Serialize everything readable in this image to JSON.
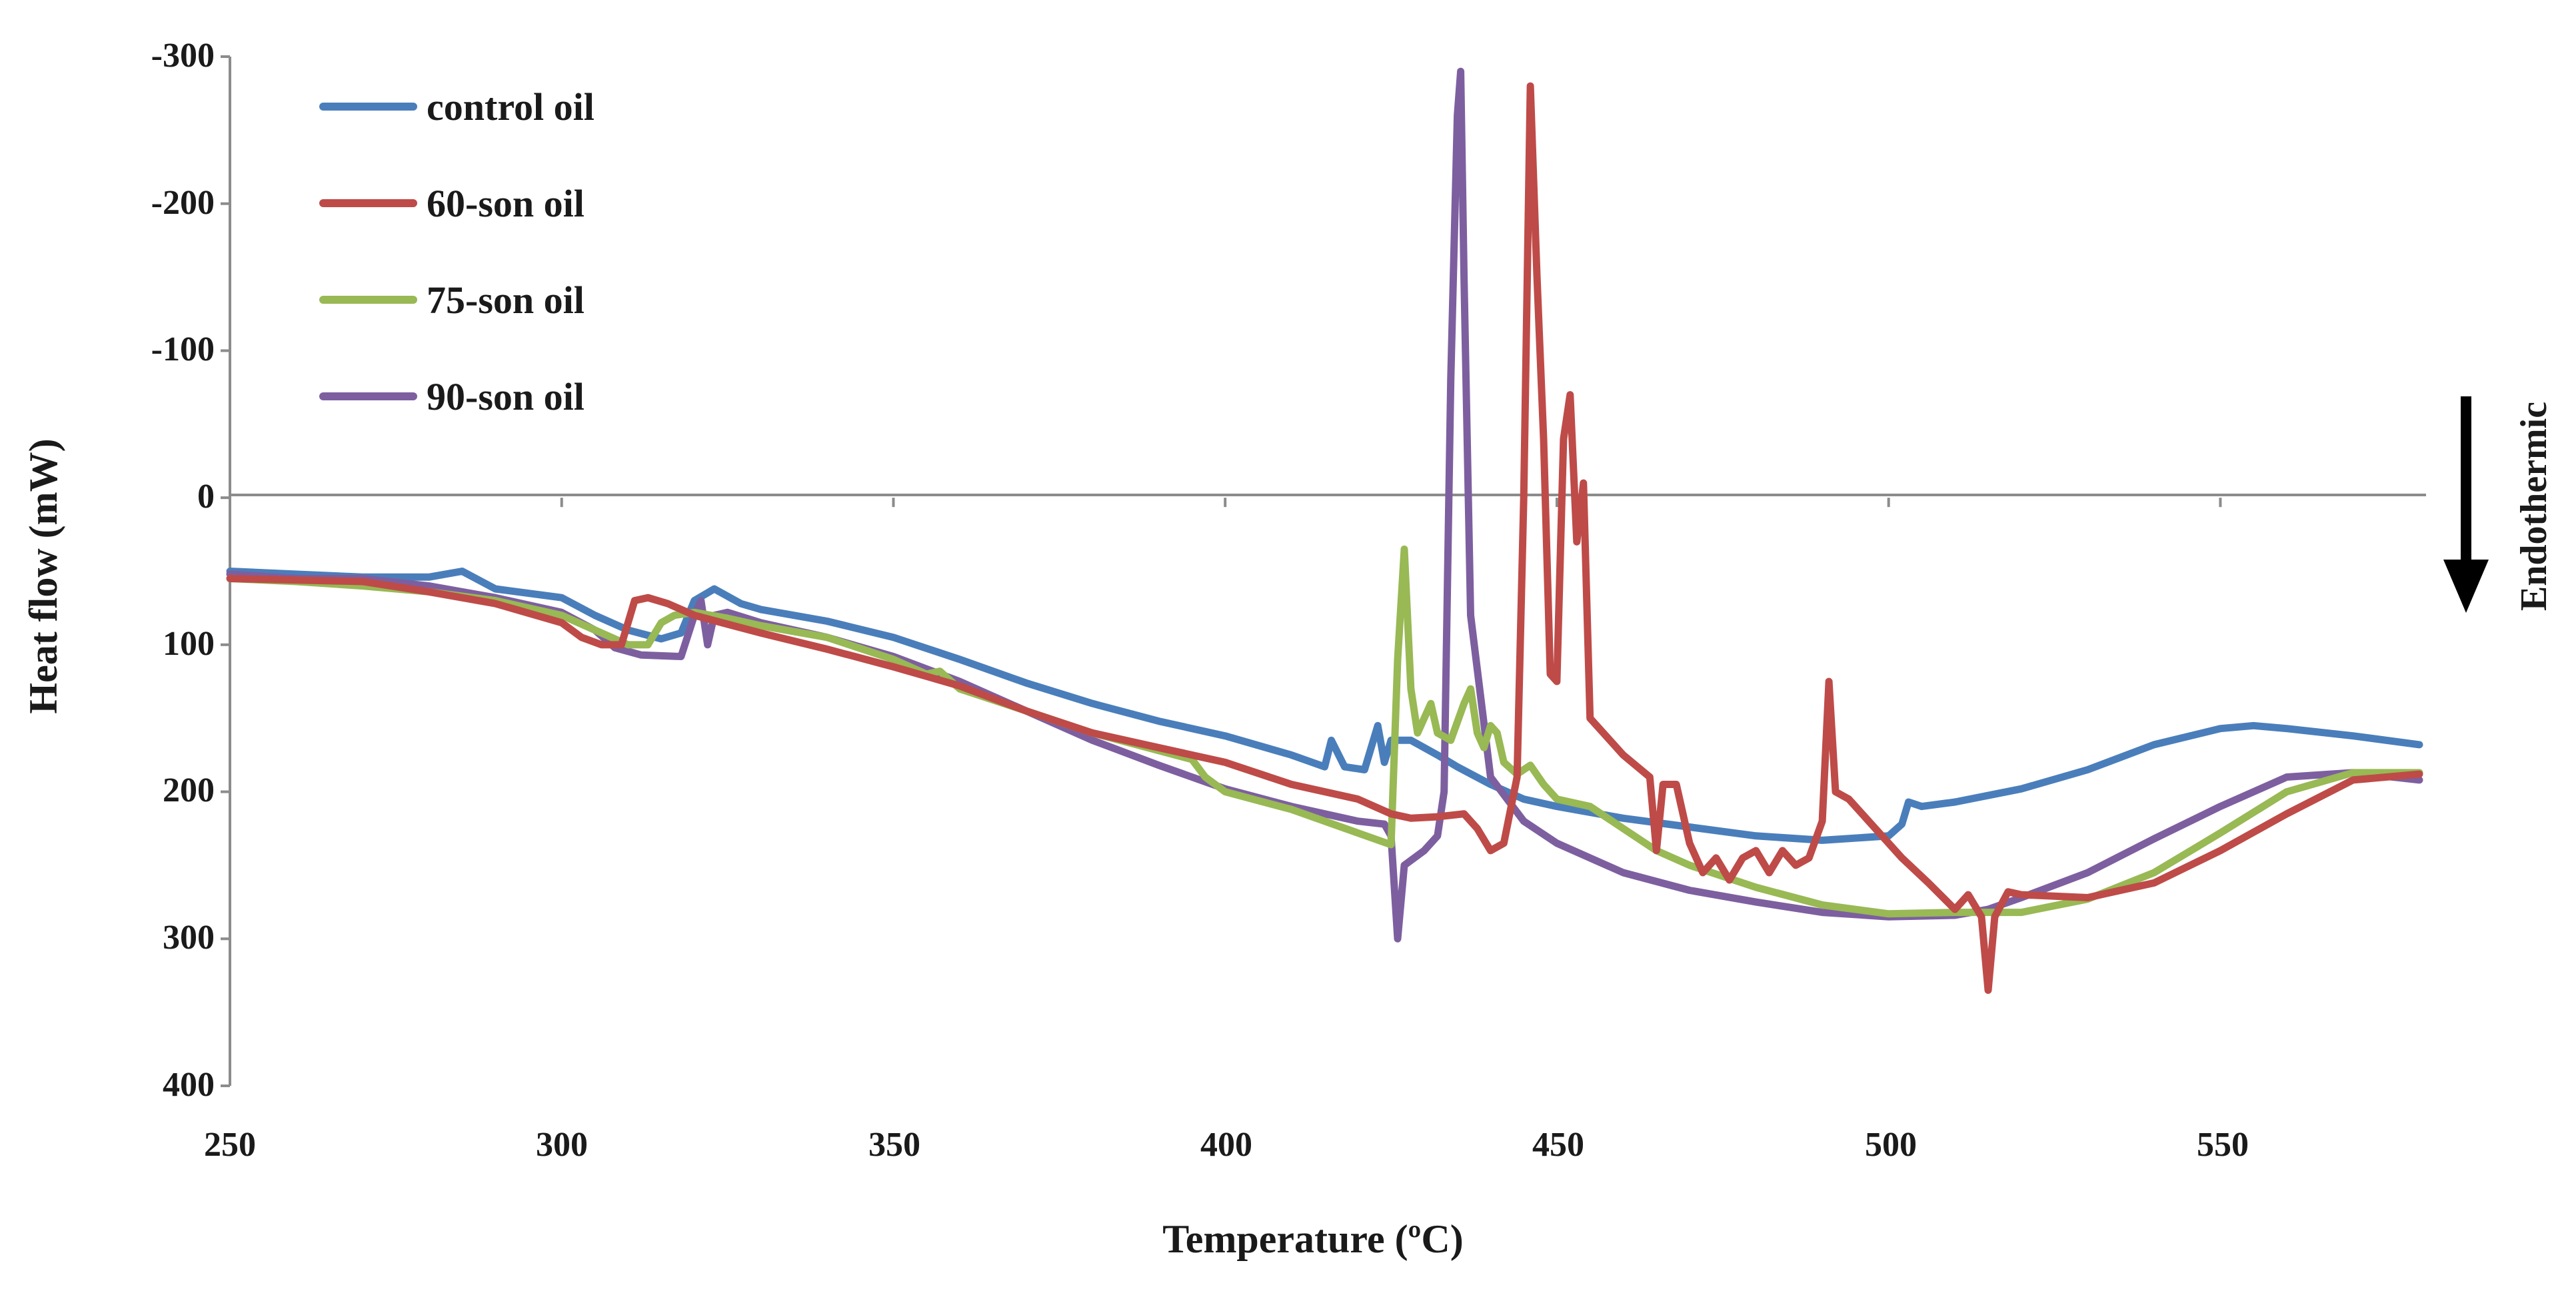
{
  "chart_data": {
    "type": "line",
    "title": "",
    "xlabel": "Temperature (ºC)",
    "ylabel": "Heat flow (mW)",
    "xlim": [
      250,
      580
    ],
    "ylim": [
      -300,
      400
    ],
    "y_inverted": true,
    "x_ticks": [
      250,
      300,
      350,
      400,
      450,
      500,
      550
    ],
    "y_ticks": [
      -300,
      -200,
      -100,
      0,
      100,
      200,
      300,
      400
    ],
    "y_tick_labels": [
      "-300",
      "-200",
      "-100",
      "0",
      "100",
      "200",
      "300",
      "400"
    ],
    "legend_position": "top-left",
    "annotation": "Endothermic",
    "series": [
      {
        "name": "control oil",
        "color": "#4a7ebb",
        "points": [
          [
            250,
            50
          ],
          [
            270,
            54
          ],
          [
            280,
            54
          ],
          [
            285,
            50
          ],
          [
            290,
            62
          ],
          [
            300,
            68
          ],
          [
            305,
            80
          ],
          [
            310,
            90
          ],
          [
            315,
            96
          ],
          [
            318,
            92
          ],
          [
            320,
            70
          ],
          [
            323,
            62
          ],
          [
            327,
            72
          ],
          [
            330,
            76
          ],
          [
            340,
            84
          ],
          [
            350,
            95
          ],
          [
            360,
            110
          ],
          [
            370,
            126
          ],
          [
            380,
            140
          ],
          [
            390,
            152
          ],
          [
            400,
            162
          ],
          [
            410,
            175
          ],
          [
            415,
            183
          ],
          [
            416,
            165
          ],
          [
            418,
            183
          ],
          [
            421,
            185
          ],
          [
            423,
            155
          ],
          [
            424,
            180
          ],
          [
            425,
            165
          ],
          [
            428,
            165
          ],
          [
            432,
            175
          ],
          [
            435,
            183
          ],
          [
            440,
            195
          ],
          [
            445,
            205
          ],
          [
            450,
            210
          ],
          [
            460,
            218
          ],
          [
            470,
            224
          ],
          [
            480,
            230
          ],
          [
            490,
            233
          ],
          [
            500,
            230
          ],
          [
            502,
            222
          ],
          [
            503,
            207
          ],
          [
            505,
            210
          ],
          [
            510,
            207
          ],
          [
            520,
            198
          ],
          [
            530,
            185
          ],
          [
            540,
            168
          ],
          [
            550,
            157
          ],
          [
            555,
            155
          ],
          [
            560,
            157
          ],
          [
            570,
            162
          ],
          [
            580,
            168
          ]
        ]
      },
      {
        "name": "60-son oil",
        "color": "#be4b48",
        "points": [
          [
            250,
            55
          ],
          [
            260,
            56
          ],
          [
            270,
            57
          ],
          [
            280,
            64
          ],
          [
            290,
            72
          ],
          [
            300,
            85
          ],
          [
            303,
            95
          ],
          [
            306,
            100
          ],
          [
            309,
            100
          ],
          [
            310,
            85
          ],
          [
            311,
            70
          ],
          [
            313,
            68
          ],
          [
            316,
            72
          ],
          [
            320,
            80
          ],
          [
            325,
            86
          ],
          [
            330,
            92
          ],
          [
            340,
            103
          ],
          [
            350,
            115
          ],
          [
            360,
            128
          ],
          [
            370,
            145
          ],
          [
            380,
            160
          ],
          [
            390,
            170
          ],
          [
            400,
            180
          ],
          [
            410,
            195
          ],
          [
            420,
            205
          ],
          [
            425,
            215
          ],
          [
            428,
            218
          ],
          [
            432,
            217
          ],
          [
            436,
            215
          ],
          [
            438,
            225
          ],
          [
            440,
            240
          ],
          [
            442,
            235
          ],
          [
            444,
            190
          ],
          [
            445,
            0
          ],
          [
            446,
            -280
          ],
          [
            447,
            -150
          ],
          [
            448,
            -40
          ],
          [
            449,
            120
          ],
          [
            450,
            125
          ],
          [
            451,
            -40
          ],
          [
            452,
            -70
          ],
          [
            453,
            30
          ],
          [
            454,
            -10
          ],
          [
            455,
            150
          ],
          [
            460,
            175
          ],
          [
            464,
            190
          ],
          [
            465,
            240
          ],
          [
            466,
            195
          ],
          [
            468,
            195
          ],
          [
            470,
            235
          ],
          [
            472,
            255
          ],
          [
            474,
            245
          ],
          [
            476,
            260
          ],
          [
            478,
            245
          ],
          [
            480,
            240
          ],
          [
            482,
            255
          ],
          [
            484,
            240
          ],
          [
            486,
            250
          ],
          [
            488,
            245
          ],
          [
            490,
            220
          ],
          [
            491,
            125
          ],
          [
            492,
            200
          ],
          [
            494,
            205
          ],
          [
            498,
            225
          ],
          [
            502,
            245
          ],
          [
            506,
            262
          ],
          [
            510,
            280
          ],
          [
            512,
            270
          ],
          [
            514,
            285
          ],
          [
            515,
            335
          ],
          [
            516,
            285
          ],
          [
            518,
            268
          ],
          [
            520,
            270
          ],
          [
            530,
            272
          ],
          [
            540,
            262
          ],
          [
            550,
            240
          ],
          [
            560,
            215
          ],
          [
            570,
            192
          ],
          [
            580,
            188
          ]
        ]
      },
      {
        "name": "75-son oil",
        "color": "#98b954",
        "points": [
          [
            250,
            55
          ],
          [
            260,
            57
          ],
          [
            270,
            60
          ],
          [
            280,
            64
          ],
          [
            290,
            70
          ],
          [
            300,
            80
          ],
          [
            305,
            90
          ],
          [
            310,
            100
          ],
          [
            313,
            100
          ],
          [
            315,
            85
          ],
          [
            317,
            80
          ],
          [
            320,
            78
          ],
          [
            325,
            82
          ],
          [
            330,
            87
          ],
          [
            340,
            95
          ],
          [
            350,
            110
          ],
          [
            355,
            120
          ],
          [
            357,
            118
          ],
          [
            360,
            130
          ],
          [
            370,
            145
          ],
          [
            380,
            160
          ],
          [
            390,
            172
          ],
          [
            395,
            178
          ],
          [
            397,
            190
          ],
          [
            400,
            200
          ],
          [
            410,
            212
          ],
          [
            420,
            228
          ],
          [
            425,
            236
          ],
          [
            426,
            110
          ],
          [
            427,
            35
          ],
          [
            428,
            130
          ],
          [
            429,
            160
          ],
          [
            431,
            140
          ],
          [
            432,
            160
          ],
          [
            434,
            165
          ],
          [
            436,
            140
          ],
          [
            437,
            130
          ],
          [
            438,
            160
          ],
          [
            439,
            170
          ],
          [
            440,
            155
          ],
          [
            441,
            160
          ],
          [
            442,
            180
          ],
          [
            444,
            188
          ],
          [
            446,
            182
          ],
          [
            448,
            195
          ],
          [
            450,
            205
          ],
          [
            455,
            210
          ],
          [
            460,
            225
          ],
          [
            465,
            240
          ],
          [
            470,
            250
          ],
          [
            480,
            265
          ],
          [
            490,
            277
          ],
          [
            500,
            283
          ],
          [
            510,
            282
          ],
          [
            520,
            282
          ],
          [
            530,
            273
          ],
          [
            540,
            255
          ],
          [
            550,
            228
          ],
          [
            560,
            200
          ],
          [
            570,
            187
          ],
          [
            580,
            187
          ]
        ]
      },
      {
        "name": "90-son oil",
        "color": "#7d5fa0",
        "points": [
          [
            250,
            52
          ],
          [
            260,
            55
          ],
          [
            270,
            55
          ],
          [
            280,
            60
          ],
          [
            290,
            68
          ],
          [
            300,
            78
          ],
          [
            305,
            90
          ],
          [
            308,
            102
          ],
          [
            312,
            107
          ],
          [
            318,
            108
          ],
          [
            320,
            80
          ],
          [
            321,
            70
          ],
          [
            322,
            100
          ],
          [
            323,
            80
          ],
          [
            325,
            78
          ],
          [
            330,
            85
          ],
          [
            340,
            95
          ],
          [
            350,
            108
          ],
          [
            360,
            125
          ],
          [
            370,
            145
          ],
          [
            380,
            165
          ],
          [
            390,
            182
          ],
          [
            400,
            198
          ],
          [
            410,
            210
          ],
          [
            420,
            220
          ],
          [
            424,
            222
          ],
          [
            425,
            230
          ],
          [
            426,
            300
          ],
          [
            427,
            250
          ],
          [
            430,
            240
          ],
          [
            432,
            230
          ],
          [
            433,
            200
          ],
          [
            434,
            -80
          ],
          [
            435,
            -260
          ],
          [
            435.5,
            -290
          ],
          [
            436,
            -150
          ],
          [
            437,
            80
          ],
          [
            440,
            190
          ],
          [
            445,
            220
          ],
          [
            450,
            235
          ],
          [
            460,
            255
          ],
          [
            470,
            267
          ],
          [
            480,
            275
          ],
          [
            490,
            282
          ],
          [
            500,
            285
          ],
          [
            510,
            284
          ],
          [
            515,
            280
          ],
          [
            520,
            272
          ],
          [
            530,
            255
          ],
          [
            540,
            232
          ],
          [
            550,
            210
          ],
          [
            560,
            190
          ],
          [
            570,
            187
          ],
          [
            580,
            192
          ]
        ]
      }
    ]
  }
}
